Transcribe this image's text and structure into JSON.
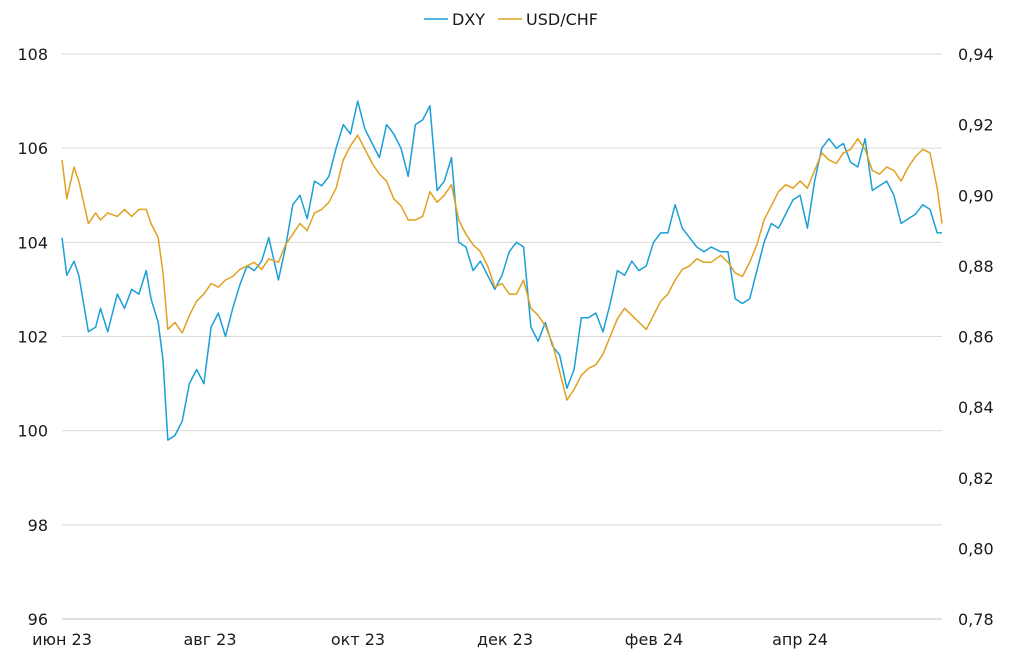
{
  "chart_data": {
    "type": "line",
    "title": "",
    "xlabel": "",
    "ylabel": "",
    "legend_position": "top-center",
    "grid": "horizontal",
    "x_ticks": [
      "июн 23",
      "авг 23",
      "окт 23",
      "дек 23",
      "фев 24",
      "апр 24"
    ],
    "y_left": {
      "min": 96,
      "max": 108,
      "ticks": [
        "96",
        "98",
        "100",
        "102",
        "104",
        "106",
        "108"
      ]
    },
    "y_right": {
      "min": 0.78,
      "max": 0.94,
      "ticks": [
        "0,78",
        "0,80",
        "0,82",
        "0,84",
        "0,86",
        "0,88",
        "0,90",
        "0,92",
        "0,94"
      ]
    },
    "series": [
      {
        "name": "DXY",
        "axis": "left",
        "color": "#1a9fd6",
        "points": [
          [
            "2023-06-01",
            104.1
          ],
          [
            "2023-06-03",
            103.3
          ],
          [
            "2023-06-06",
            103.6
          ],
          [
            "2023-06-08",
            103.3
          ],
          [
            "2023-06-12",
            102.1
          ],
          [
            "2023-06-15",
            102.2
          ],
          [
            "2023-06-17",
            102.6
          ],
          [
            "2023-06-20",
            102.1
          ],
          [
            "2023-06-24",
            102.9
          ],
          [
            "2023-06-27",
            102.6
          ],
          [
            "2023-06-30",
            103.0
          ],
          [
            "2023-07-03",
            102.9
          ],
          [
            "2023-07-06",
            103.4
          ],
          [
            "2023-07-08",
            102.8
          ],
          [
            "2023-07-11",
            102.3
          ],
          [
            "2023-07-13",
            101.5
          ],
          [
            "2023-07-15",
            99.8
          ],
          [
            "2023-07-18",
            99.9
          ],
          [
            "2023-07-21",
            100.2
          ],
          [
            "2023-07-24",
            101.0
          ],
          [
            "2023-07-27",
            101.3
          ],
          [
            "2023-07-30",
            101.0
          ],
          [
            "2023-08-02",
            102.2
          ],
          [
            "2023-08-05",
            102.5
          ],
          [
            "2023-08-08",
            102.0
          ],
          [
            "2023-08-11",
            102.6
          ],
          [
            "2023-08-14",
            103.1
          ],
          [
            "2023-08-17",
            103.5
          ],
          [
            "2023-08-20",
            103.4
          ],
          [
            "2023-08-23",
            103.6
          ],
          [
            "2023-08-26",
            104.1
          ],
          [
            "2023-08-30",
            103.2
          ],
          [
            "2023-09-02",
            103.9
          ],
          [
            "2023-09-05",
            104.8
          ],
          [
            "2023-09-08",
            105.0
          ],
          [
            "2023-09-11",
            104.5
          ],
          [
            "2023-09-14",
            105.3
          ],
          [
            "2023-09-17",
            105.2
          ],
          [
            "2023-09-20",
            105.4
          ],
          [
            "2023-09-23",
            106.0
          ],
          [
            "2023-09-26",
            106.5
          ],
          [
            "2023-09-29",
            106.3
          ],
          [
            "2023-10-02",
            107.0
          ],
          [
            "2023-10-05",
            106.4
          ],
          [
            "2023-10-08",
            106.1
          ],
          [
            "2023-10-11",
            105.8
          ],
          [
            "2023-10-14",
            106.5
          ],
          [
            "2023-10-17",
            106.3
          ],
          [
            "2023-10-20",
            106.0
          ],
          [
            "2023-10-23",
            105.4
          ],
          [
            "2023-10-26",
            106.5
          ],
          [
            "2023-10-29",
            106.6
          ],
          [
            "2023-11-01",
            106.9
          ],
          [
            "2023-11-04",
            105.1
          ],
          [
            "2023-11-07",
            105.3
          ],
          [
            "2023-11-10",
            105.8
          ],
          [
            "2023-11-13",
            104.0
          ],
          [
            "2023-11-16",
            103.9
          ],
          [
            "2023-11-19",
            103.4
          ],
          [
            "2023-11-22",
            103.6
          ],
          [
            "2023-11-25",
            103.3
          ],
          [
            "2023-11-28",
            103.0
          ],
          [
            "2023-12-01",
            103.3
          ],
          [
            "2023-12-04",
            103.8
          ],
          [
            "2023-12-07",
            104.0
          ],
          [
            "2023-12-10",
            103.9
          ],
          [
            "2023-12-13",
            102.2
          ],
          [
            "2023-12-16",
            101.9
          ],
          [
            "2023-12-19",
            102.3
          ],
          [
            "2023-12-22",
            101.8
          ],
          [
            "2023-12-25",
            101.6
          ],
          [
            "2023-12-28",
            100.9
          ],
          [
            "2023-12-31",
            101.3
          ],
          [
            "2024-01-03",
            102.4
          ],
          [
            "2024-01-06",
            102.4
          ],
          [
            "2024-01-09",
            102.5
          ],
          [
            "2024-01-12",
            102.1
          ],
          [
            "2024-01-15",
            102.7
          ],
          [
            "2024-01-18",
            103.4
          ],
          [
            "2024-01-21",
            103.3
          ],
          [
            "2024-01-24",
            103.6
          ],
          [
            "2024-01-27",
            103.4
          ],
          [
            "2024-01-30",
            103.5
          ],
          [
            "2024-02-02",
            104.0
          ],
          [
            "2024-02-05",
            104.2
          ],
          [
            "2024-02-08",
            104.2
          ],
          [
            "2024-02-11",
            104.8
          ],
          [
            "2024-02-14",
            104.3
          ],
          [
            "2024-02-17",
            104.1
          ],
          [
            "2024-02-20",
            103.9
          ],
          [
            "2024-02-23",
            103.8
          ],
          [
            "2024-02-26",
            103.9
          ],
          [
            "2024-03-01",
            103.8
          ],
          [
            "2024-03-04",
            103.8
          ],
          [
            "2024-03-07",
            102.8
          ],
          [
            "2024-03-10",
            102.7
          ],
          [
            "2024-03-13",
            102.8
          ],
          [
            "2024-03-16",
            103.4
          ],
          [
            "2024-03-19",
            104.0
          ],
          [
            "2024-03-22",
            104.4
          ],
          [
            "2024-03-25",
            104.3
          ],
          [
            "2024-03-28",
            104.6
          ],
          [
            "2024-03-31",
            104.9
          ],
          [
            "2024-04-03",
            105.0
          ],
          [
            "2024-04-06",
            104.3
          ],
          [
            "2024-04-09",
            105.3
          ],
          [
            "2024-04-12",
            106.0
          ],
          [
            "2024-04-15",
            106.2
          ],
          [
            "2024-04-18",
            106.0
          ],
          [
            "2024-04-21",
            106.1
          ],
          [
            "2024-04-24",
            105.7
          ],
          [
            "2024-04-27",
            105.6
          ],
          [
            "2024-04-30",
            106.2
          ],
          [
            "2024-05-03",
            105.1
          ],
          [
            "2024-05-06",
            105.2
          ],
          [
            "2024-05-09",
            105.3
          ],
          [
            "2024-05-12",
            105.0
          ],
          [
            "2024-05-15",
            104.4
          ],
          [
            "2024-05-18",
            104.5
          ],
          [
            "2024-05-21",
            104.6
          ],
          [
            "2024-05-24",
            104.8
          ],
          [
            "2024-05-27",
            104.7
          ],
          [
            "2024-05-30",
            104.2
          ],
          [
            "2024-06-01",
            104.2
          ]
        ]
      },
      {
        "name": "USD/CHF",
        "axis": "right",
        "color": "#e0a020",
        "points": [
          [
            "2023-06-01",
            0.91
          ],
          [
            "2023-06-03",
            0.899
          ],
          [
            "2023-06-06",
            0.908
          ],
          [
            "2023-06-08",
            0.904
          ],
          [
            "2023-06-12",
            0.892
          ],
          [
            "2023-06-15",
            0.895
          ],
          [
            "2023-06-17",
            0.893
          ],
          [
            "2023-06-20",
            0.895
          ],
          [
            "2023-06-24",
            0.894
          ],
          [
            "2023-06-27",
            0.896
          ],
          [
            "2023-06-30",
            0.894
          ],
          [
            "2023-07-03",
            0.896
          ],
          [
            "2023-07-06",
            0.896
          ],
          [
            "2023-07-08",
            0.892
          ],
          [
            "2023-07-11",
            0.888
          ],
          [
            "2023-07-13",
            0.878
          ],
          [
            "2023-07-15",
            0.862
          ],
          [
            "2023-07-18",
            0.864
          ],
          [
            "2023-07-21",
            0.861
          ],
          [
            "2023-07-24",
            0.866
          ],
          [
            "2023-07-27",
            0.87
          ],
          [
            "2023-07-30",
            0.872
          ],
          [
            "2023-08-02",
            0.875
          ],
          [
            "2023-08-05",
            0.874
          ],
          [
            "2023-08-08",
            0.876
          ],
          [
            "2023-08-11",
            0.877
          ],
          [
            "2023-08-14",
            0.879
          ],
          [
            "2023-08-17",
            0.88
          ],
          [
            "2023-08-20",
            0.881
          ],
          [
            "2023-08-23",
            0.879
          ],
          [
            "2023-08-26",
            0.882
          ],
          [
            "2023-08-30",
            0.881
          ],
          [
            "2023-09-02",
            0.886
          ],
          [
            "2023-09-05",
            0.889
          ],
          [
            "2023-09-08",
            0.892
          ],
          [
            "2023-09-11",
            0.89
          ],
          [
            "2023-09-14",
            0.895
          ],
          [
            "2023-09-17",
            0.896
          ],
          [
            "2023-09-20",
            0.898
          ],
          [
            "2023-09-23",
            0.902
          ],
          [
            "2023-09-26",
            0.91
          ],
          [
            "2023-09-29",
            0.914
          ],
          [
            "2023-10-02",
            0.917
          ],
          [
            "2023-10-05",
            0.913
          ],
          [
            "2023-10-08",
            0.909
          ],
          [
            "2023-10-11",
            0.906
          ],
          [
            "2023-10-14",
            0.904
          ],
          [
            "2023-10-17",
            0.899
          ],
          [
            "2023-10-20",
            0.897
          ],
          [
            "2023-10-23",
            0.893
          ],
          [
            "2023-10-26",
            0.893
          ],
          [
            "2023-10-29",
            0.894
          ],
          [
            "2023-11-01",
            0.901
          ],
          [
            "2023-11-04",
            0.898
          ],
          [
            "2023-11-07",
            0.9
          ],
          [
            "2023-11-10",
            0.903
          ],
          [
            "2023-11-13",
            0.893
          ],
          [
            "2023-11-16",
            0.889
          ],
          [
            "2023-11-19",
            0.886
          ],
          [
            "2023-11-22",
            0.884
          ],
          [
            "2023-11-25",
            0.88
          ],
          [
            "2023-11-28",
            0.874
          ],
          [
            "2023-12-01",
            0.875
          ],
          [
            "2023-12-04",
            0.872
          ],
          [
            "2023-12-07",
            0.872
          ],
          [
            "2023-12-10",
            0.876
          ],
          [
            "2023-12-13",
            0.868
          ],
          [
            "2023-12-16",
            0.866
          ],
          [
            "2023-12-19",
            0.863
          ],
          [
            "2023-12-22",
            0.858
          ],
          [
            "2023-12-25",
            0.85
          ],
          [
            "2023-12-28",
            0.842
          ],
          [
            "2023-12-31",
            0.845
          ],
          [
            "2024-01-03",
            0.849
          ],
          [
            "2024-01-06",
            0.851
          ],
          [
            "2024-01-09",
            0.852
          ],
          [
            "2024-01-12",
            0.855
          ],
          [
            "2024-01-15",
            0.86
          ],
          [
            "2024-01-18",
            0.865
          ],
          [
            "2024-01-21",
            0.868
          ],
          [
            "2024-01-24",
            0.866
          ],
          [
            "2024-01-27",
            0.864
          ],
          [
            "2024-01-30",
            0.862
          ],
          [
            "2024-02-02",
            0.866
          ],
          [
            "2024-02-05",
            0.87
          ],
          [
            "2024-02-08",
            0.872
          ],
          [
            "2024-02-11",
            0.876
          ],
          [
            "2024-02-14",
            0.879
          ],
          [
            "2024-02-17",
            0.88
          ],
          [
            "2024-02-20",
            0.882
          ],
          [
            "2024-02-23",
            0.881
          ],
          [
            "2024-02-26",
            0.881
          ],
          [
            "2024-03-01",
            0.883
          ],
          [
            "2024-03-04",
            0.881
          ],
          [
            "2024-03-07",
            0.878
          ],
          [
            "2024-03-10",
            0.877
          ],
          [
            "2024-03-13",
            0.881
          ],
          [
            "2024-03-16",
            0.886
          ],
          [
            "2024-03-19",
            0.893
          ],
          [
            "2024-03-22",
            0.897
          ],
          [
            "2024-03-25",
            0.901
          ],
          [
            "2024-03-28",
            0.903
          ],
          [
            "2024-03-31",
            0.902
          ],
          [
            "2024-04-03",
            0.904
          ],
          [
            "2024-04-06",
            0.902
          ],
          [
            "2024-04-09",
            0.907
          ],
          [
            "2024-04-12",
            0.912
          ],
          [
            "2024-04-15",
            0.91
          ],
          [
            "2024-04-18",
            0.909
          ],
          [
            "2024-04-21",
            0.912
          ],
          [
            "2024-04-24",
            0.913
          ],
          [
            "2024-04-27",
            0.916
          ],
          [
            "2024-04-30",
            0.913
          ],
          [
            "2024-05-03",
            0.907
          ],
          [
            "2024-05-06",
            0.906
          ],
          [
            "2024-05-09",
            0.908
          ],
          [
            "2024-05-12",
            0.907
          ],
          [
            "2024-05-15",
            0.904
          ],
          [
            "2024-05-18",
            0.908
          ],
          [
            "2024-05-21",
            0.911
          ],
          [
            "2024-05-24",
            0.913
          ],
          [
            "2024-05-27",
            0.912
          ],
          [
            "2024-05-30",
            0.902
          ],
          [
            "2024-06-01",
            0.892
          ]
        ]
      }
    ]
  }
}
